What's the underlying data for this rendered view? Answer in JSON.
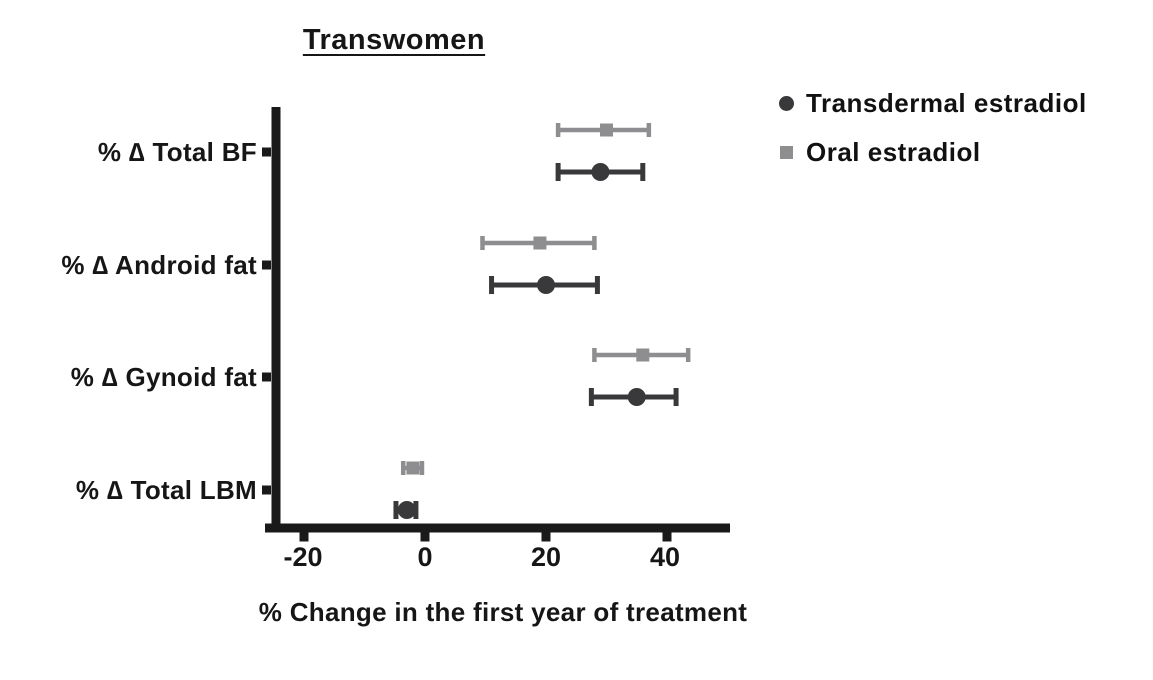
{
  "figure": {
    "title": "Transwomen",
    "xlabel": "% Change in the first year of treatment"
  },
  "legend": {
    "items": [
      {
        "label": "Transdermal estradiol",
        "marker": "circle-marker-icon",
        "color": "#39393b"
      },
      {
        "label": "Oral estradiol",
        "marker": "square-marker-icon",
        "color": "#8e8e90"
      }
    ]
  },
  "chart_data": {
    "type": "scatter",
    "subtype": "horizontal-dot-plot-with-error-bars",
    "title": "Transwomen",
    "xlabel": "% Change in the first year of treatment",
    "categories": [
      "% ∆ Total BF",
      "% ∆ Android fat",
      "% ∆ Gynoid fat",
      "% ∆ Total LBM"
    ],
    "xticks": [
      "-20",
      "0",
      "20",
      "40"
    ],
    "xtick_values": [
      -20,
      0,
      20,
      40
    ],
    "xlim": [
      -26,
      50
    ],
    "grid": false,
    "legend_position": "top-right",
    "series": [
      {
        "name": "Transdermal estradiol",
        "marker": "circle",
        "color": "#39393b",
        "values": [
          29,
          20,
          35,
          -3
        ],
        "ci_low": [
          22,
          11,
          27.5,
          -4.8
        ],
        "ci_high": [
          36,
          28.5,
          41.5,
          -1.5
        ]
      },
      {
        "name": "Oral estradiol",
        "marker": "square",
        "color": "#8e8e90",
        "values": [
          30,
          19,
          36,
          -2
        ],
        "ci_low": [
          22,
          9.5,
          28,
          -3.6
        ],
        "ci_high": [
          37,
          28,
          43.5,
          -0.5
        ]
      }
    ]
  }
}
